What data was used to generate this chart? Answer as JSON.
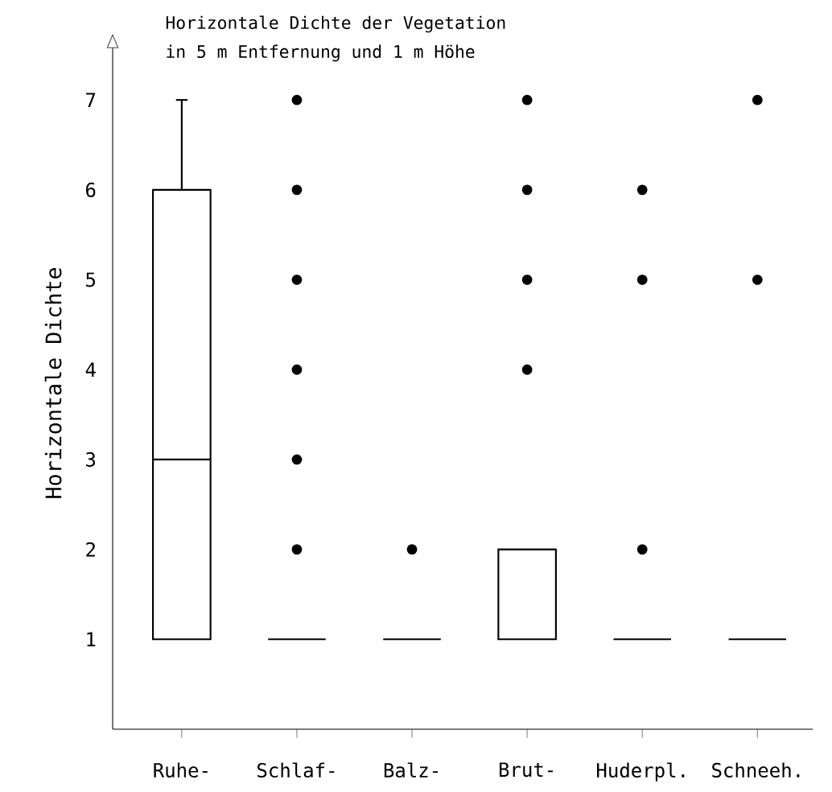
{
  "chart_data": {
    "type": "box",
    "title": "Horizontale Dichte der Vegetation",
    "subtitle": "in 5 m Entfernung und 1 m Höhe",
    "ylabel": "Horizontale Dichte",
    "categories": [
      "Ruhe-",
      "Schlaf-",
      "Balz-",
      "Brut-",
      "Huderpl.",
      "Schneeh."
    ],
    "ylim": [
      0,
      7.7
    ],
    "yticks": [
      1,
      2,
      3,
      4,
      5,
      6,
      7
    ],
    "marker": "circle",
    "color": "#000000",
    "boxes": [
      {
        "low": 1,
        "q1": 1,
        "median": 3,
        "q3": 6,
        "high": 7
      },
      {
        "low": 1,
        "q1": 1,
        "median": 1,
        "q3": 1,
        "high": 1,
        "outliers": [
          2,
          3,
          4,
          5,
          6,
          7
        ]
      },
      {
        "low": 1,
        "q1": 1,
        "median": 1,
        "q3": 1,
        "high": 1,
        "outliers": [
          2
        ]
      },
      {
        "low": 1,
        "q1": 1,
        "median": 1,
        "q3": 2,
        "high": 2,
        "outliers": [
          4,
          5,
          6,
          7
        ]
      },
      {
        "low": 1,
        "q1": 1,
        "median": 1,
        "q3": 1,
        "high": 1,
        "outliers": [
          2,
          5,
          6
        ]
      },
      {
        "low": 1,
        "q1": 1,
        "median": 1,
        "q3": 1,
        "high": 1,
        "outliers": [
          5,
          7
        ]
      }
    ]
  }
}
